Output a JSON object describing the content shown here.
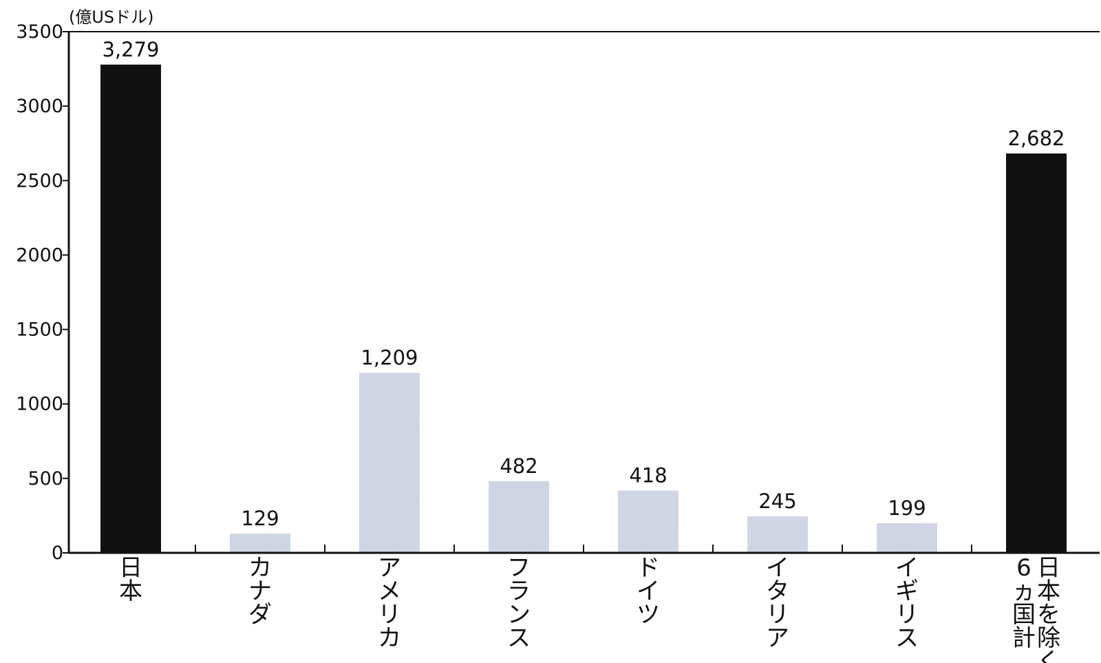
{
  "chart_data": {
    "type": "bar",
    "unit_label": "(億USドル)",
    "ylim": [
      0,
      3500
    ],
    "yticks": [
      0,
      500,
      1000,
      1500,
      2000,
      2500,
      3000,
      3500
    ],
    "categories": [
      "日本",
      "カナダ",
      "アメリカ",
      "フランス",
      "ドイツ",
      "イタリア",
      "イギリス",
      "日本を除く6ヵ国計"
    ],
    "category_label_lines": [
      [
        "日本"
      ],
      [
        "カナダ"
      ],
      [
        "アメリカ"
      ],
      [
        "フランス"
      ],
      [
        "ドイツ"
      ],
      [
        "イタリア"
      ],
      [
        "イギリス"
      ],
      [
        "日本を除く",
        "6ヵ国計"
      ]
    ],
    "values": [
      3279,
      129,
      1209,
      482,
      418,
      245,
      199,
      2682
    ],
    "value_labels": [
      "3,279",
      "129",
      "1,209",
      "482",
      "418",
      "245",
      "199",
      "2,682"
    ],
    "bar_colors": [
      "#111111",
      "#c9d0de",
      "#c9d0de",
      "#c9d0de",
      "#c9d0de",
      "#c9d0de",
      "#c9d0de",
      "#111111"
    ],
    "grid": false
  }
}
